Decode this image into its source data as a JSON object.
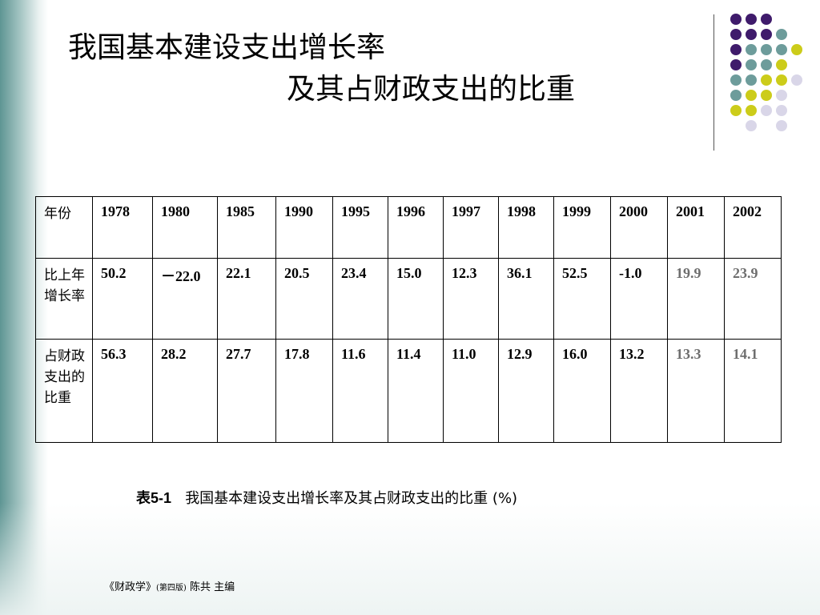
{
  "title": {
    "line1": "我国基本建设支出增长率",
    "line2": "及其占财政支出的比重"
  },
  "table": {
    "header_label": "年份",
    "years": [
      "1978",
      "1980",
      "1985",
      "1990",
      "1995",
      "1996",
      "1997",
      "1998",
      "1999",
      "2000",
      "2001",
      "2002"
    ],
    "rows": [
      {
        "label": "比上年增长率",
        "values": [
          "50.2",
          "－22.0",
          "22.1",
          "20.5",
          "23.4",
          "15.0",
          "12.3",
          "36.1",
          "52.5",
          "-1.0",
          "19.9",
          "23.9"
        ]
      },
      {
        "label": "占财政支出的比重",
        "values": [
          "56.3",
          "28.2",
          "27.7",
          "17.8",
          "11.6",
          "11.4",
          "11.0",
          "12.9",
          "16.0",
          "13.2",
          "13.3",
          "14.1"
        ]
      }
    ],
    "gray_value_color": "#6e6e6e"
  },
  "caption": {
    "label": "表5-1",
    "text": "我国基本建设支出增长率及其占财政支出的比重",
    "unit": "(%)"
  },
  "footer": {
    "book": "《财政学》",
    "edition": "(第四版)",
    "author": "陈共 主编"
  },
  "decor": {
    "dot_colors": {
      "purple": "#3f1b6b",
      "teal": "#6d9c9b",
      "yellow": "#cccc1a",
      "lavender": "#d9d6e8"
    }
  }
}
